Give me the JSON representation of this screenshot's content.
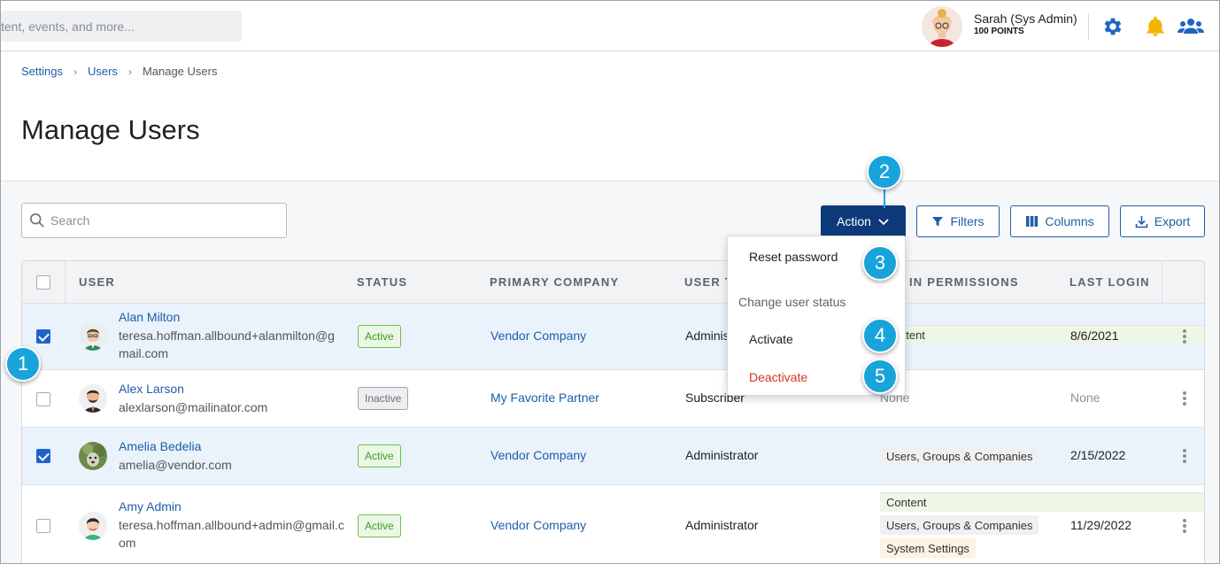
{
  "header": {
    "search_placeholder": "tent, events, and more...",
    "user_name": "Sarah (Sys Admin)",
    "user_points": "100 POINTS",
    "icons": [
      "avatar",
      "gear-icon",
      "bell-icon",
      "users-icon"
    ],
    "colors": {
      "gear": "#1e64c8",
      "bell": "#f4b400",
      "users": "#1e64c8"
    }
  },
  "breadcrumb": {
    "items": [
      "Settings",
      "Users",
      "Manage Users"
    ]
  },
  "page": {
    "title": "Manage Users"
  },
  "toolbar": {
    "search_placeholder": "Search",
    "action_label": "Action",
    "filters_label": "Filters",
    "columns_label": "Columns",
    "export_label": "Export"
  },
  "table": {
    "columns": [
      "USER",
      "STATUS",
      "PRIMARY COMPANY",
      "USER T",
      "IN PERMISSIONS",
      "LAST LOGIN"
    ],
    "rows": [
      {
        "selected": true,
        "name": "Alan Milton",
        "email": "teresa.hoffman.allbound+alanmilton@gmail.com",
        "status": "Active",
        "company": "Vendor Company",
        "user_type": "Adminis",
        "permissions": [
          "ntent"
        ],
        "last_login": "8/6/2021"
      },
      {
        "selected": false,
        "name": "Alex Larson",
        "email": "alexlarson@mailinator.com",
        "status": "Inactive",
        "company": "My Favorite Partner",
        "user_type": "Subscriber",
        "permissions_none": "None",
        "last_login": "None"
      },
      {
        "selected": true,
        "name": "Amelia Bedelia",
        "email": "amelia@vendor.com",
        "status": "Active",
        "company": "Vendor Company",
        "user_type": "Administrator",
        "permissions": [
          "Users, Groups & Companies"
        ],
        "last_login": "2/15/2022"
      },
      {
        "selected": false,
        "name": "Amy Admin",
        "email": "teresa.hoffman.allbound+admin@gmail.com",
        "status": "Active",
        "company": "Vendor Company",
        "user_type": "Administrator",
        "permissions": [
          "Content",
          "Users, Groups & Companies",
          "System Settings"
        ],
        "last_login": "11/29/2022"
      }
    ]
  },
  "dropdown": {
    "reset_password": "Reset password",
    "section_label": "Change user status",
    "activate": "Activate",
    "deactivate": "Deactivate"
  },
  "callouts": [
    "1",
    "2",
    "3",
    "4",
    "5"
  ]
}
